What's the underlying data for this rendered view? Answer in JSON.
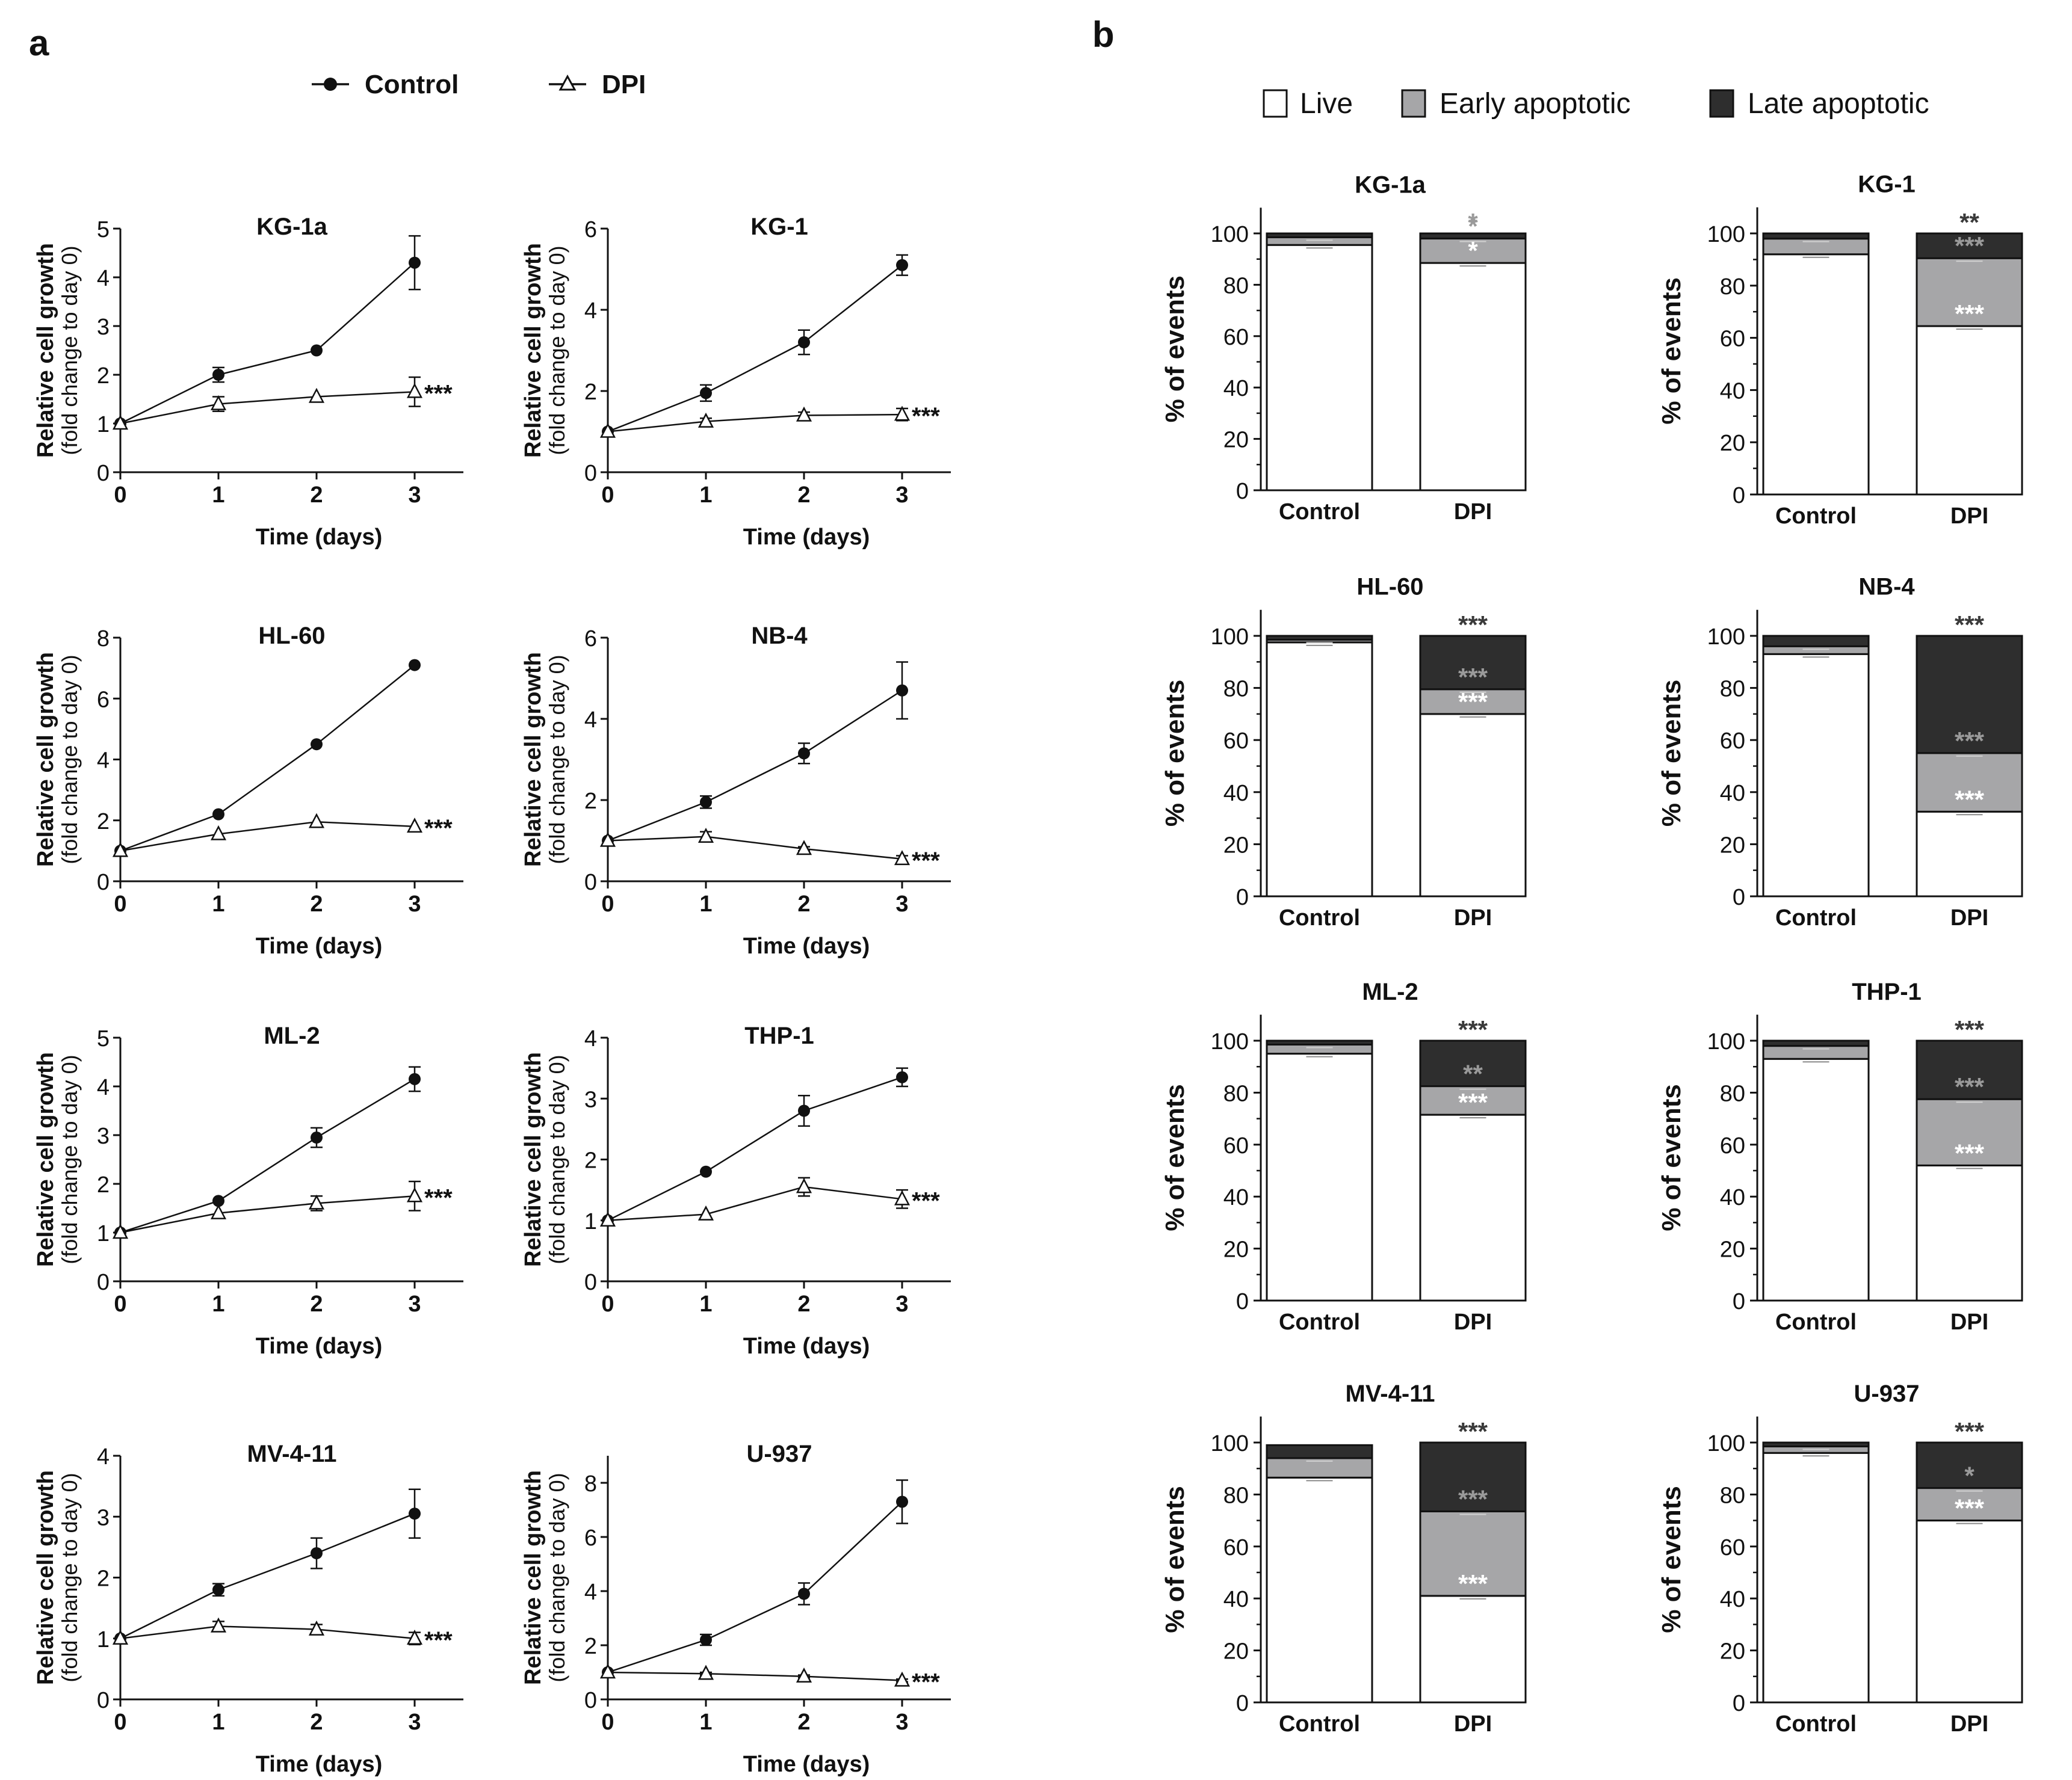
{
  "panel_labels": {
    "a": "a",
    "b": "b"
  },
  "legend_a": {
    "control": "Control",
    "dpi": "DPI"
  },
  "legend_b": {
    "live": "Live",
    "early": "Early apoptotic",
    "late": "Late apoptotic"
  },
  "colors": {
    "live": "#ffffff",
    "early": "#a6a6a8",
    "late": "#2e2e2e",
    "ink": "#111111",
    "grayStar": "#9a9a9a"
  },
  "chart_data": [
    {
      "type": "line",
      "title": "KG-1a",
      "xlabel": "Time (days)",
      "ylabel": "Relative cell growth",
      "ylabel2": "(fold change to day 0)",
      "x": [
        0,
        1,
        2,
        3
      ],
      "ylim": [
        0,
        5
      ],
      "yticks": [
        0,
        1,
        2,
        3,
        4,
        5
      ],
      "series": [
        {
          "name": "Control",
          "values": [
            1,
            2.0,
            2.5,
            4.3
          ],
          "err": [
            0,
            0.15,
            0,
            0.55
          ]
        },
        {
          "name": "DPI",
          "values": [
            1,
            1.4,
            1.55,
            1.65
          ],
          "err": [
            0,
            0.15,
            0,
            0.3
          ]
        }
      ],
      "annotation": "***"
    },
    {
      "type": "line",
      "title": "KG-1",
      "xlabel": "Time (days)",
      "ylabel": "Relative cell growth",
      "ylabel2": "(fold change to day 0)",
      "x": [
        0,
        1,
        2,
        3
      ],
      "ylim": [
        0,
        6
      ],
      "yticks": [
        0,
        2,
        4,
        6
      ],
      "series": [
        {
          "name": "Control",
          "values": [
            1,
            1.95,
            3.2,
            5.1
          ],
          "err": [
            0,
            0.2,
            0.3,
            0.25
          ]
        },
        {
          "name": "DPI",
          "values": [
            1,
            1.25,
            1.4,
            1.42
          ],
          "err": [
            0,
            0.08,
            0.08,
            0.15
          ]
        }
      ],
      "annotation": "***"
    },
    {
      "type": "line",
      "title": "HL-60",
      "xlabel": "Time (days)",
      "ylabel": "Relative cell growth",
      "ylabel2": "(fold change to day 0)",
      "x": [
        0,
        1,
        2,
        3
      ],
      "ylim": [
        0,
        8
      ],
      "yticks": [
        0,
        2,
        4,
        6,
        8
      ],
      "series": [
        {
          "name": "Control",
          "values": [
            1,
            2.2,
            4.5,
            7.1
          ],
          "err": [
            0,
            0,
            0,
            0
          ]
        },
        {
          "name": "DPI",
          "values": [
            1,
            1.55,
            1.95,
            1.8
          ],
          "err": [
            0,
            0,
            0,
            0
          ]
        }
      ],
      "annotation": "***"
    },
    {
      "type": "line",
      "title": "NB-4",
      "xlabel": "Time (days)",
      "ylabel": "Relative cell growth",
      "ylabel2": "(fold change to day 0)",
      "x": [
        0,
        1,
        2,
        3
      ],
      "ylim": [
        0,
        6
      ],
      "yticks": [
        0,
        2,
        4,
        6
      ],
      "series": [
        {
          "name": "Control",
          "values": [
            1,
            1.95,
            3.15,
            4.7
          ],
          "err": [
            0,
            0.15,
            0.25,
            0.7
          ]
        },
        {
          "name": "DPI",
          "values": [
            1,
            1.1,
            0.8,
            0.55
          ],
          "err": [
            0,
            0.12,
            0.05,
            0.08
          ]
        }
      ],
      "annotation": "***"
    },
    {
      "type": "line",
      "title": "ML-2",
      "xlabel": "Time (days)",
      "ylabel": "Relative cell growth",
      "ylabel2": "(fold change to day 0)",
      "x": [
        0,
        1,
        2,
        3
      ],
      "ylim": [
        0,
        5
      ],
      "yticks": [
        0,
        1,
        2,
        3,
        4,
        5
      ],
      "series": [
        {
          "name": "Control",
          "values": [
            1,
            1.65,
            2.95,
            4.15
          ],
          "err": [
            0,
            0,
            0.2,
            0.25
          ]
        },
        {
          "name": "DPI",
          "values": [
            1,
            1.4,
            1.6,
            1.75
          ],
          "err": [
            0,
            0,
            0.15,
            0.3
          ]
        }
      ],
      "annotation": "***"
    },
    {
      "type": "line",
      "title": "THP-1",
      "xlabel": "Time (days)",
      "ylabel": "Relative cell growth",
      "ylabel2": "(fold change to day 0)",
      "x": [
        0,
        1,
        2,
        3
      ],
      "ylim": [
        0,
        4
      ],
      "yticks": [
        0,
        1,
        2,
        3,
        4
      ],
      "series": [
        {
          "name": "Control",
          "values": [
            1,
            1.8,
            2.8,
            3.35
          ],
          "err": [
            0,
            0,
            0.25,
            0.15
          ]
        },
        {
          "name": "DPI",
          "values": [
            1,
            1.1,
            1.55,
            1.35
          ],
          "err": [
            0,
            0,
            0.15,
            0.15
          ]
        }
      ],
      "annotation": "***"
    },
    {
      "type": "line",
      "title": "MV-4-11",
      "xlabel": "Time (days)",
      "ylabel": "Relative cell growth",
      "ylabel2": "(fold change to day 0)",
      "x": [
        0,
        1,
        2,
        3
      ],
      "ylim": [
        0,
        4
      ],
      "yticks": [
        0,
        1,
        2,
        3,
        4
      ],
      "series": [
        {
          "name": "Control",
          "values": [
            1,
            1.8,
            2.4,
            3.05
          ],
          "err": [
            0,
            0.1,
            0.25,
            0.4
          ]
        },
        {
          "name": "DPI",
          "values": [
            1,
            1.2,
            1.15,
            1.0
          ],
          "err": [
            0,
            0.08,
            0.08,
            0.1
          ]
        }
      ],
      "annotation": "***"
    },
    {
      "type": "line",
      "title": "U-937",
      "xlabel": "Time (days)",
      "ylabel": "Relative cell growth",
      "ylabel2": "(fold change to day 0)",
      "x": [
        0,
        1,
        2,
        3
      ],
      "ylim": [
        0,
        9
      ],
      "yticks": [
        0,
        2,
        4,
        6,
        8
      ],
      "series": [
        {
          "name": "Control",
          "values": [
            1,
            2.2,
            3.9,
            7.3
          ],
          "err": [
            0,
            0.2,
            0.4,
            0.8
          ]
        },
        {
          "name": "DPI",
          "values": [
            1,
            0.95,
            0.85,
            0.7
          ],
          "err": [
            0,
            0.05,
            0.05,
            0.05
          ]
        }
      ],
      "annotation": "***"
    },
    {
      "type": "bar",
      "stacked": true,
      "title": "KG-1a",
      "categories": [
        "Control",
        "DPI"
      ],
      "ylabel": "% of events",
      "ylim": [
        0,
        110
      ],
      "yticks": [
        0,
        20,
        40,
        60,
        80,
        100
      ],
      "series": [
        {
          "name": "Live",
          "values": [
            95.5,
            88.5
          ]
        },
        {
          "name": "Early apoptotic",
          "values": [
            3.0,
            9.5
          ]
        },
        {
          "name": "Late apoptotic",
          "values": [
            1.5,
            2.0
          ]
        }
      ],
      "annotations": {
        "live": "*",
        "early": "*",
        "late": "*"
      }
    },
    {
      "type": "bar",
      "stacked": true,
      "title": "KG-1",
      "categories": [
        "Control",
        "DPI"
      ],
      "ylabel": "% of events",
      "ylim": [
        0,
        110
      ],
      "yticks": [
        0,
        20,
        40,
        60,
        80,
        100
      ],
      "series": [
        {
          "name": "Live",
          "values": [
            92,
            64.5
          ]
        },
        {
          "name": "Early apoptotic",
          "values": [
            6,
            26
          ]
        },
        {
          "name": "Late apoptotic",
          "values": [
            2,
            9.5
          ]
        }
      ],
      "annotations": {
        "live": "***",
        "early": "***",
        "late": "**"
      }
    },
    {
      "type": "bar",
      "stacked": true,
      "title": "HL-60",
      "categories": [
        "Control",
        "DPI"
      ],
      "ylabel": "% of events",
      "ylim": [
        0,
        110
      ],
      "yticks": [
        0,
        20,
        40,
        60,
        80,
        100
      ],
      "series": [
        {
          "name": "Live",
          "values": [
            97.5,
            70
          ]
        },
        {
          "name": "Early apoptotic",
          "values": [
            1,
            9.5
          ]
        },
        {
          "name": "Late apoptotic",
          "values": [
            1.5,
            20.5
          ]
        }
      ],
      "annotations": {
        "live": "***",
        "early": "***",
        "late": "***"
      }
    },
    {
      "type": "bar",
      "stacked": true,
      "title": "NB-4",
      "categories": [
        "Control",
        "DPI"
      ],
      "ylabel": "% of events",
      "ylim": [
        0,
        110
      ],
      "yticks": [
        0,
        20,
        40,
        60,
        80,
        100
      ],
      "series": [
        {
          "name": "Live",
          "values": [
            93,
            32.5
          ]
        },
        {
          "name": "Early apoptotic",
          "values": [
            3,
            22.5
          ]
        },
        {
          "name": "Late apoptotic",
          "values": [
            4,
            45
          ]
        }
      ],
      "annotations": {
        "live": "***",
        "early": "***",
        "late": "***"
      }
    },
    {
      "type": "bar",
      "stacked": true,
      "title": "ML-2",
      "categories": [
        "Control",
        "DPI"
      ],
      "ylabel": "% of events",
      "ylim": [
        0,
        110
      ],
      "yticks": [
        0,
        20,
        40,
        60,
        80,
        100
      ],
      "series": [
        {
          "name": "Live",
          "values": [
            95,
            71.5
          ]
        },
        {
          "name": "Early apoptotic",
          "values": [
            3.5,
            11
          ]
        },
        {
          "name": "Late apoptotic",
          "values": [
            1.5,
            17.5
          ]
        }
      ],
      "annotations": {
        "live": "***",
        "early": "**",
        "late": "***"
      }
    },
    {
      "type": "bar",
      "stacked": true,
      "title": "THP-1",
      "categories": [
        "Control",
        "DPI"
      ],
      "ylabel": "% of events",
      "ylim": [
        0,
        110
      ],
      "yticks": [
        0,
        20,
        40,
        60,
        80,
        100
      ],
      "series": [
        {
          "name": "Live",
          "values": [
            93,
            52
          ]
        },
        {
          "name": "Early apoptotic",
          "values": [
            5,
            25.5
          ]
        },
        {
          "name": "Late apoptotic",
          "values": [
            2,
            22.5
          ]
        }
      ],
      "annotations": {
        "live": "***",
        "early": "***",
        "late": "***"
      }
    },
    {
      "type": "bar",
      "stacked": true,
      "title": "MV-4-11",
      "categories": [
        "Control",
        "DPI"
      ],
      "ylabel": "% of events",
      "ylim": [
        0,
        110
      ],
      "yticks": [
        0,
        20,
        40,
        60,
        80,
        100
      ],
      "series": [
        {
          "name": "Live",
          "values": [
            86.5,
            41
          ]
        },
        {
          "name": "Early apoptotic",
          "values": [
            7.5,
            32.5
          ]
        },
        {
          "name": "Late apoptotic",
          "values": [
            5,
            26.5
          ]
        }
      ],
      "annotations": {
        "live": "***",
        "early": "***",
        "late": "***"
      }
    },
    {
      "type": "bar",
      "stacked": true,
      "title": "U-937",
      "categories": [
        "Control",
        "DPI"
      ],
      "ylabel": "% of events",
      "ylim": [
        0,
        110
      ],
      "yticks": [
        0,
        20,
        40,
        60,
        80,
        100
      ],
      "series": [
        {
          "name": "Live",
          "values": [
            96,
            70
          ]
        },
        {
          "name": "Early apoptotic",
          "values": [
            2.5,
            12.5
          ]
        },
        {
          "name": "Late apoptotic",
          "values": [
            1.5,
            17.5
          ]
        }
      ],
      "annotations": {
        "live": "***",
        "early": "*",
        "late": "***"
      }
    }
  ]
}
